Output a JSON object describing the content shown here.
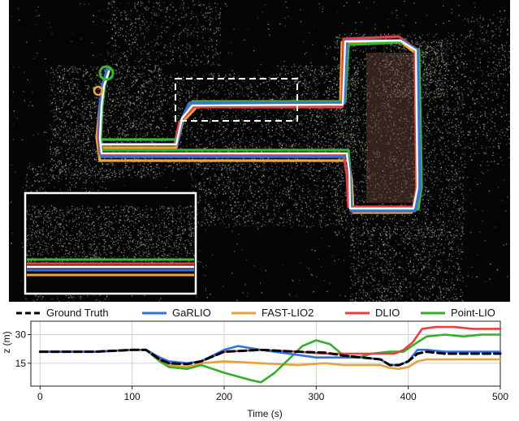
{
  "map": {
    "colors": {
      "ground_truth": "#ffffff",
      "garlio": "#3b6fe0",
      "fast_lio2": "#f0a830",
      "dlio": "#e8413c",
      "point_lio": "#3cb534"
    }
  },
  "chart_data": {
    "type": "line",
    "xlabel": "Time (s)",
    "ylabel": "z (m)",
    "xlim": [
      -10,
      500
    ],
    "ylim": [
      3,
      37
    ],
    "xticks": [
      0,
      100,
      200,
      300,
      400,
      500
    ],
    "yticks": [
      15,
      30
    ],
    "grid": true,
    "legend_position": "top",
    "series": [
      {
        "name": "Ground Truth",
        "color": "#000000",
        "dash": true,
        "x": [
          0,
          30,
          60,
          100,
          115,
          130,
          140,
          160,
          175,
          200,
          240,
          280,
          310,
          330,
          350,
          370,
          380,
          390,
          400,
          410,
          420,
          440,
          460,
          480,
          500
        ],
        "y": [
          21,
          21,
          21,
          22,
          22,
          17,
          15,
          14.5,
          16,
          21,
          22,
          21,
          20.5,
          19,
          18,
          17,
          14,
          14,
          16,
          20,
          21,
          20,
          20,
          20,
          20
        ]
      },
      {
        "name": "GaRLIO",
        "color": "#2f6fe8",
        "dash": false,
        "x": [
          0,
          30,
          60,
          100,
          115,
          130,
          140,
          160,
          175,
          200,
          215,
          240,
          270,
          300,
          330,
          350,
          370,
          380,
          390,
          400,
          410,
          420,
          440,
          460,
          480,
          500
        ],
        "y": [
          21,
          21,
          21,
          22,
          22,
          18,
          16,
          15,
          16,
          22,
          24,
          22,
          20,
          18,
          18,
          18,
          17,
          14,
          14,
          16,
          22,
          22,
          21,
          21,
          21,
          21
        ]
      },
      {
        "name": "FAST-LIO2",
        "color": "#e6a23c",
        "dash": false,
        "x": [
          0,
          30,
          60,
          100,
          115,
          130,
          140,
          160,
          175,
          200,
          240,
          280,
          310,
          330,
          350,
          370,
          380,
          390,
          400,
          410,
          420,
          440,
          460,
          480,
          500
        ],
        "y": [
          21,
          21,
          21,
          22,
          22,
          17,
          14,
          13,
          15,
          16,
          15,
          14,
          15,
          14,
          14,
          14,
          12.5,
          12,
          13,
          16,
          17,
          17,
          17,
          17,
          17
        ]
      },
      {
        "name": "DLIO",
        "color": "#e8413c",
        "dash": false,
        "x": [
          0,
          30,
          60,
          100,
          115,
          130,
          140,
          160,
          175,
          200,
          240,
          280,
          310,
          330,
          350,
          370,
          385,
          395,
          405,
          415,
          430,
          450,
          470,
          490,
          500
        ],
        "y": [
          21,
          21,
          21,
          22,
          22,
          17,
          15,
          15,
          16,
          21,
          22,
          21,
          20,
          20,
          20,
          20,
          20,
          22,
          26,
          33,
          34,
          34,
          33,
          33,
          33
        ]
      },
      {
        "name": "Point-LIO",
        "color": "#33b02a",
        "dash": false,
        "x": [
          0,
          30,
          60,
          100,
          115,
          130,
          140,
          160,
          175,
          200,
          215,
          230,
          240,
          255,
          270,
          285,
          300,
          315,
          330,
          345,
          360,
          380,
          395,
          410,
          420,
          440,
          460,
          480,
          500
        ],
        "y": [
          21,
          21,
          21,
          22,
          22,
          16,
          13,
          12,
          14,
          10,
          8,
          6,
          5,
          10,
          17,
          24,
          27,
          25,
          19,
          18,
          20,
          21,
          21,
          26,
          29,
          30,
          29,
          30,
          30
        ]
      }
    ]
  }
}
